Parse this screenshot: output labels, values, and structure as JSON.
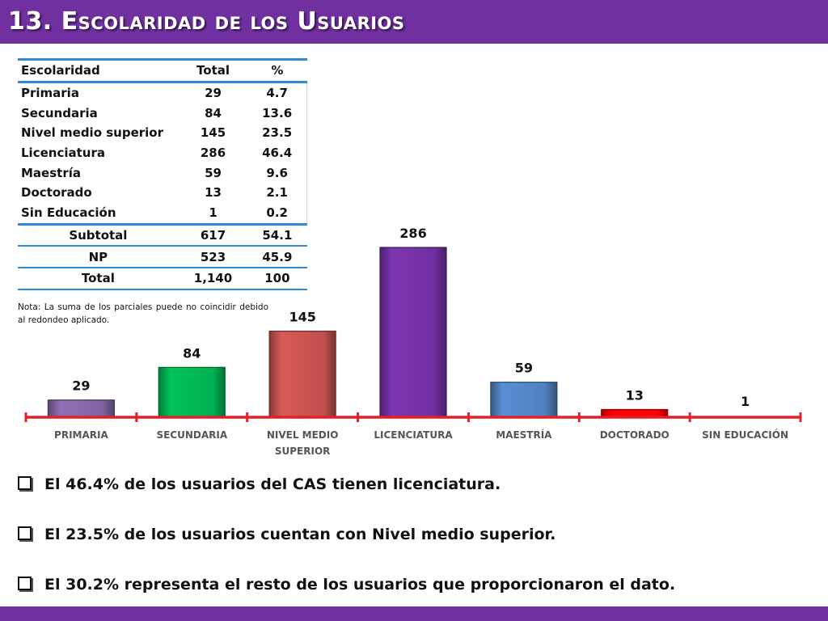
{
  "title": "13. Escolaridad de los Usuarios",
  "table": {
    "headers": [
      "Escolaridad",
      "Total",
      "%"
    ],
    "rows": [
      [
        "Primaria",
        "29",
        "4.7"
      ],
      [
        "Secundaria",
        "84",
        "13.6"
      ],
      [
        "Nivel medio superior",
        "145",
        "23.5"
      ],
      [
        "Licenciatura",
        "286",
        "46.4"
      ],
      [
        "Maestría",
        "59",
        "9.6"
      ],
      [
        "Doctorado",
        "13",
        "2.1"
      ],
      [
        "Sin Educación",
        "1",
        "0.2"
      ]
    ],
    "summary": [
      [
        "Subtotal",
        "617",
        "54.1"
      ],
      [
        "NP",
        "523",
        "45.9"
      ],
      [
        "Total",
        "1,140",
        "100"
      ]
    ]
  },
  "note": "Nota: La suma de los parciales puede no coincidir debido al redondeo aplicado.",
  "chart_data": {
    "type": "bar",
    "categories": [
      "PRIMARIA",
      "SECUNDARIA",
      "NIVEL MEDIO SUPERIOR",
      "LICENCIATURA",
      "MAESTRÍA",
      "DOCTORADO",
      "SIN EDUCACIÓN"
    ],
    "values": [
      29,
      84,
      145,
      286,
      59,
      13,
      1
    ],
    "data_labels": [
      "29",
      "84",
      "145",
      "286",
      "59",
      "13",
      "1"
    ],
    "colors": [
      "#8064a2",
      "#00b050",
      "#c0504d",
      "#7030a0",
      "#4f81bd",
      "#ff0000",
      "#7f7f7f"
    ],
    "axis_color": "#e0202a",
    "title": "",
    "xlabel": "",
    "ylabel": "",
    "grid": false,
    "legend": "none"
  },
  "bullets": [
    "El 46.4% de los usuarios del CAS tienen licenciatura.",
    "El 23.5% de los usuarios cuentan con Nivel medio superior.",
    "El  30.2% representa el resto de los usuarios que proporcionaron el dato."
  ],
  "colors": {
    "title_bar": "#7030a0",
    "table_rule": "#2e8bd9"
  }
}
